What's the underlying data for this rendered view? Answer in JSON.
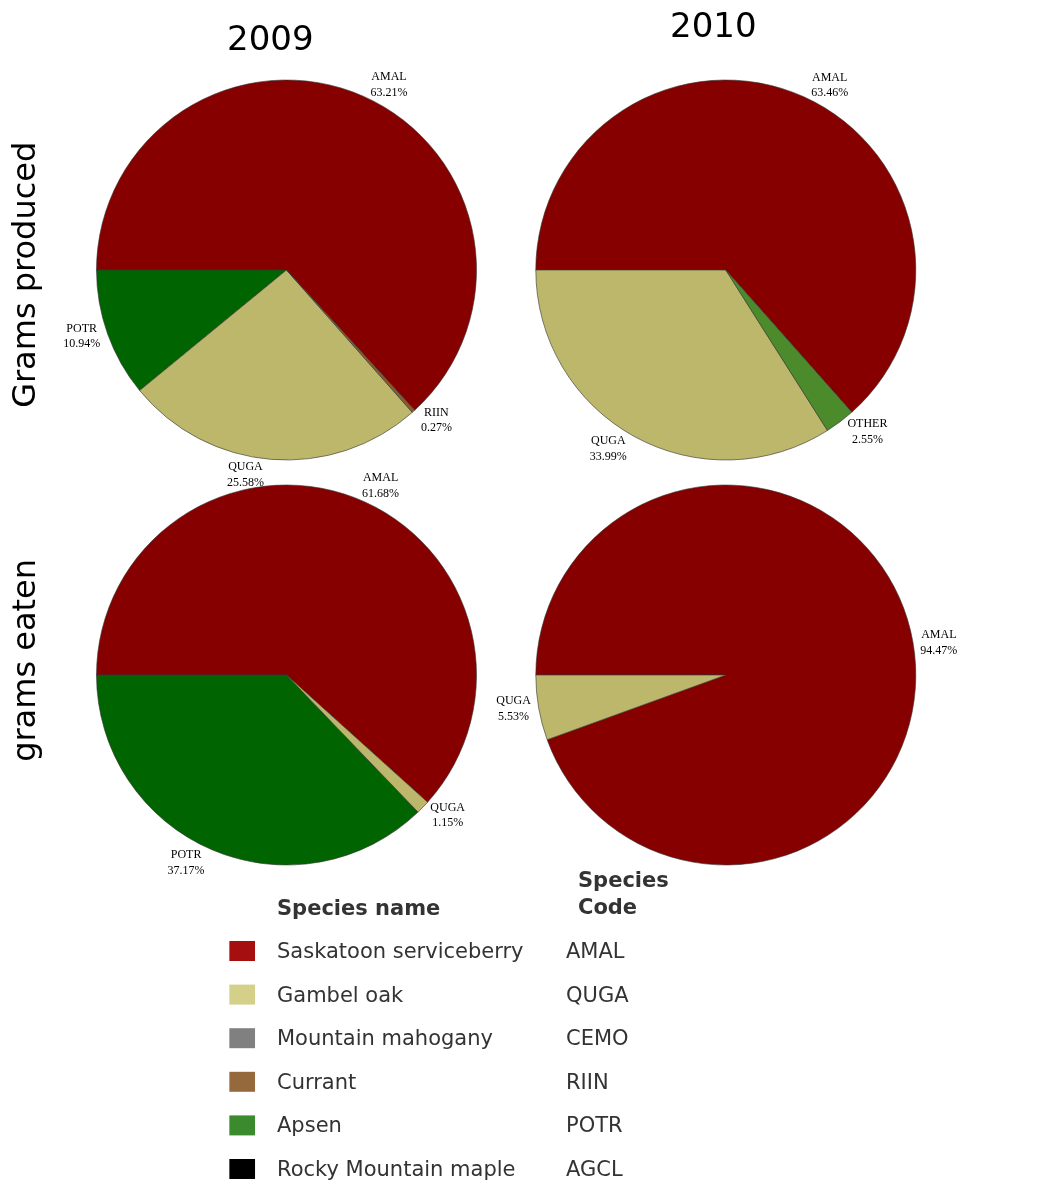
{
  "chart_data": [
    {
      "type": "pie",
      "title": "2009",
      "ylabel": "Grams produced",
      "categories": [
        "AMAL",
        "POTR",
        "QUGA",
        "RIIN"
      ],
      "values": [
        63.21,
        10.94,
        25.58,
        0.27
      ],
      "value_labels": [
        "63.21%",
        "10.94%",
        "25.58%",
        "0.27%"
      ],
      "colors": [
        "#870000",
        "#006400",
        "#bdb76b",
        "#8b5a2b"
      ]
    },
    {
      "type": "pie",
      "title": "2010",
      "categories": [
        "AMAL",
        "QUGA",
        "OTHER"
      ],
      "values": [
        63.46,
        33.99,
        2.55
      ],
      "value_labels": [
        "63.46%",
        "33.99%",
        "2.55%"
      ],
      "colors": [
        "#870000",
        "#bdb76b",
        "#4b8b2b"
      ]
    },
    {
      "type": "pie",
      "ylabel": "grams eaten",
      "categories": [
        "AMAL",
        "POTR",
        "QUGA"
      ],
      "values": [
        61.68,
        37.17,
        1.15
      ],
      "value_labels": [
        "61.68%",
        "37.17%",
        "1.15%"
      ],
      "colors": [
        "#870000",
        "#006400",
        "#bdb76b"
      ]
    },
    {
      "type": "pie",
      "categories": [
        "AMAL",
        "QUGA"
      ],
      "values": [
        94.47,
        5.53
      ],
      "value_labels": [
        "94.47%",
        "5.53%"
      ],
      "colors": [
        "#870000",
        "#bdb76b"
      ]
    },
    {
      "type": "other",
      "categories": [
        "Saskatoon serviceberry",
        "Gambel oak",
        "Mountain mahogany",
        "Currant",
        "Apsen",
        "Rocky Mountain maple"
      ],
      "colors": [
        "#a50f0f",
        "#d4d08a",
        "#808080",
        "#96693c",
        "#3c8a2e",
        "#000000"
      ],
      "annotations": [
        "Species name",
        "Species\nCode",
        "AMAL",
        "QUGA",
        "CEMO",
        "RIIN",
        "POTR",
        "AGCL"
      ]
    }
  ]
}
